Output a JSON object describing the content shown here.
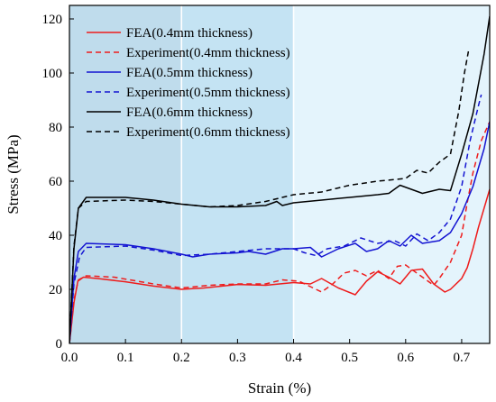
{
  "chart_data": {
    "type": "line",
    "xlabel": "Strain (%)",
    "ylabel": "Stress (MPa)",
    "xlim": [
      0,
      0.75
    ],
    "ylim": [
      0,
      125
    ],
    "xticks": [
      "0.0",
      "0.1",
      "0.2",
      "0.3",
      "0.4",
      "0.5",
      "0.6",
      "0.7"
    ],
    "xtick_values": [
      0,
      0.1,
      0.2,
      0.3,
      0.4,
      0.5,
      0.6,
      0.7
    ],
    "yticks": [
      "0",
      "20",
      "40",
      "60",
      "80",
      "100",
      "120"
    ],
    "ytick_values": [
      0,
      20,
      40,
      60,
      80,
      100,
      120
    ],
    "grid": false,
    "legend_position": "top-left",
    "shaded_regions": [
      {
        "x_range": [
          0,
          0.2
        ],
        "color": "#bfdcec"
      },
      {
        "x_range": [
          0.2,
          0.4
        ],
        "color": "#c4e3f3"
      },
      {
        "x_range": [
          0.4,
          0.75
        ],
        "color": "#e4f4fc"
      }
    ],
    "series": [
      {
        "name": "FEA(0.4mm thickness)",
        "color": "#ee1c1c",
        "dash": "solid",
        "points": [
          [
            0,
            0
          ],
          [
            0.008,
            15
          ],
          [
            0.015,
            23
          ],
          [
            0.025,
            24.5
          ],
          [
            0.05,
            24
          ],
          [
            0.1,
            22.8
          ],
          [
            0.15,
            21.2
          ],
          [
            0.2,
            20
          ],
          [
            0.24,
            20.5
          ],
          [
            0.3,
            21.8
          ],
          [
            0.35,
            21.5
          ],
          [
            0.4,
            22.5
          ],
          [
            0.43,
            22
          ],
          [
            0.45,
            24
          ],
          [
            0.48,
            20.5
          ],
          [
            0.51,
            18
          ],
          [
            0.53,
            23
          ],
          [
            0.55,
            26.5
          ],
          [
            0.57,
            24.5
          ],
          [
            0.59,
            22
          ],
          [
            0.61,
            27
          ],
          [
            0.63,
            27.5
          ],
          [
            0.65,
            22
          ],
          [
            0.67,
            19
          ],
          [
            0.68,
            20
          ],
          [
            0.7,
            24
          ],
          [
            0.71,
            28
          ],
          [
            0.72,
            35
          ],
          [
            0.73,
            43
          ],
          [
            0.74,
            50
          ],
          [
            0.75,
            57
          ]
        ]
      },
      {
        "name": "Experiment(0.4mm thickness)",
        "color": "#ee1c1c",
        "dash": "dashed",
        "points": [
          [
            0,
            0
          ],
          [
            0.008,
            16
          ],
          [
            0.016,
            23.5
          ],
          [
            0.03,
            25
          ],
          [
            0.08,
            24.5
          ],
          [
            0.15,
            22
          ],
          [
            0.2,
            20.5
          ],
          [
            0.25,
            21.5
          ],
          [
            0.3,
            22
          ],
          [
            0.35,
            22
          ],
          [
            0.38,
            23.5
          ],
          [
            0.41,
            23
          ],
          [
            0.43,
            21
          ],
          [
            0.45,
            19
          ],
          [
            0.47,
            22
          ],
          [
            0.49,
            26
          ],
          [
            0.51,
            27
          ],
          [
            0.53,
            25
          ],
          [
            0.55,
            27
          ],
          [
            0.57,
            24
          ],
          [
            0.585,
            28.5
          ],
          [
            0.6,
            29
          ],
          [
            0.62,
            26
          ],
          [
            0.65,
            21.5
          ],
          [
            0.66,
            24
          ],
          [
            0.68,
            30
          ],
          [
            0.7,
            40
          ],
          [
            0.71,
            52
          ],
          [
            0.72,
            63
          ],
          [
            0.735,
            75
          ],
          [
            0.75,
            82
          ]
        ]
      },
      {
        "name": "FEA(0.5mm thickness)",
        "color": "#1414d2",
        "dash": "solid",
        "points": [
          [
            0,
            0
          ],
          [
            0.008,
            24
          ],
          [
            0.016,
            34
          ],
          [
            0.03,
            37
          ],
          [
            0.1,
            36.5
          ],
          [
            0.15,
            35
          ],
          [
            0.2,
            33
          ],
          [
            0.22,
            32
          ],
          [
            0.25,
            33
          ],
          [
            0.3,
            33.5
          ],
          [
            0.32,
            34
          ],
          [
            0.35,
            33
          ],
          [
            0.38,
            35
          ],
          [
            0.4,
            35
          ],
          [
            0.43,
            35.5
          ],
          [
            0.45,
            32
          ],
          [
            0.48,
            35
          ],
          [
            0.51,
            37
          ],
          [
            0.53,
            34
          ],
          [
            0.55,
            35
          ],
          [
            0.57,
            38
          ],
          [
            0.59,
            36
          ],
          [
            0.61,
            40
          ],
          [
            0.63,
            37
          ],
          [
            0.66,
            38
          ],
          [
            0.68,
            41
          ],
          [
            0.7,
            48
          ],
          [
            0.72,
            58
          ],
          [
            0.74,
            72
          ],
          [
            0.75,
            82
          ]
        ]
      },
      {
        "name": "Experiment(0.5mm thickness)",
        "color": "#1414d2",
        "dash": "dashed",
        "points": [
          [
            0,
            0
          ],
          [
            0.008,
            22
          ],
          [
            0.018,
            32
          ],
          [
            0.03,
            35.5
          ],
          [
            0.1,
            36
          ],
          [
            0.15,
            34.5
          ],
          [
            0.2,
            32.5
          ],
          [
            0.25,
            33
          ],
          [
            0.3,
            34
          ],
          [
            0.35,
            35
          ],
          [
            0.4,
            35
          ],
          [
            0.42,
            33.5
          ],
          [
            0.44,
            32.5
          ],
          [
            0.46,
            35
          ],
          [
            0.49,
            36
          ],
          [
            0.52,
            39
          ],
          [
            0.55,
            37
          ],
          [
            0.58,
            38
          ],
          [
            0.6,
            36
          ],
          [
            0.62,
            40.5
          ],
          [
            0.64,
            38
          ],
          [
            0.66,
            41
          ],
          [
            0.68,
            46
          ],
          [
            0.7,
            58
          ],
          [
            0.715,
            75
          ],
          [
            0.73,
            88
          ],
          [
            0.735,
            92
          ]
        ]
      },
      {
        "name": "FEA(0.6mm thickness)",
        "color": "#000000",
        "dash": "solid",
        "points": [
          [
            0,
            0
          ],
          [
            0.008,
            35
          ],
          [
            0.016,
            50
          ],
          [
            0.03,
            54
          ],
          [
            0.1,
            54
          ],
          [
            0.15,
            53
          ],
          [
            0.2,
            51.5
          ],
          [
            0.25,
            50.5
          ],
          [
            0.3,
            50.5
          ],
          [
            0.35,
            51
          ],
          [
            0.37,
            52.5
          ],
          [
            0.38,
            51
          ],
          [
            0.4,
            52
          ],
          [
            0.45,
            53
          ],
          [
            0.5,
            54
          ],
          [
            0.55,
            55
          ],
          [
            0.57,
            55.5
          ],
          [
            0.59,
            58.5
          ],
          [
            0.61,
            57
          ],
          [
            0.63,
            55.5
          ],
          [
            0.66,
            57
          ],
          [
            0.68,
            56.5
          ],
          [
            0.7,
            70
          ],
          [
            0.72,
            85
          ],
          [
            0.74,
            107
          ],
          [
            0.75,
            121
          ]
        ]
      },
      {
        "name": "Experiment(0.6mm thickness)",
        "color": "#000000",
        "dash": "dashed",
        "points": [
          [
            0,
            0
          ],
          [
            0.008,
            36
          ],
          [
            0.016,
            50
          ],
          [
            0.03,
            52.5
          ],
          [
            0.1,
            53
          ],
          [
            0.15,
            52.5
          ],
          [
            0.2,
            51.5
          ],
          [
            0.25,
            50.5
          ],
          [
            0.3,
            51
          ],
          [
            0.35,
            52.5
          ],
          [
            0.4,
            55
          ],
          [
            0.45,
            56
          ],
          [
            0.5,
            58.5
          ],
          [
            0.55,
            60
          ],
          [
            0.6,
            61
          ],
          [
            0.62,
            64
          ],
          [
            0.64,
            63
          ],
          [
            0.66,
            67
          ],
          [
            0.68,
            70
          ],
          [
            0.695,
            86
          ],
          [
            0.705,
            100
          ],
          [
            0.712,
            108
          ]
        ]
      }
    ]
  }
}
